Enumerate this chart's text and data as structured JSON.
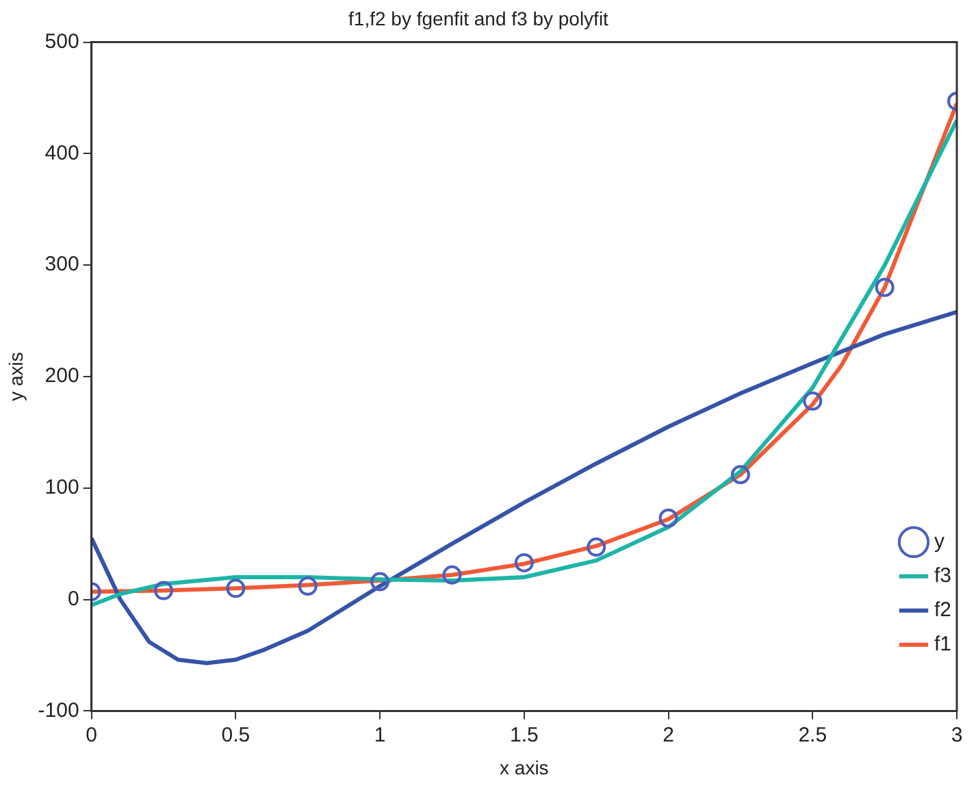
{
  "chart_data": {
    "type": "line",
    "title": "f1,f2 by fgenfit and f3 by polyfit",
    "xlabel": "x axis",
    "ylabel": "y axis",
    "xlim": [
      0,
      3
    ],
    "ylim": [
      -100,
      500
    ],
    "xticks": [
      0,
      0.5,
      1,
      1.5,
      2,
      2.5,
      3
    ],
    "yticks": [
      -100,
      0,
      100,
      200,
      300,
      400,
      500
    ],
    "grid": false,
    "legend": "bottom right",
    "line_style": "solid",
    "series": [
      {
        "name": "y",
        "type": "scatter",
        "marker": "circle",
        "color": "#4a5fc1",
        "x": [
          0,
          0.25,
          0.5,
          0.75,
          1,
          1.25,
          1.5,
          1.75,
          2,
          2.25,
          2.5,
          2.75,
          3
        ],
        "values": [
          7,
          8,
          10,
          12,
          16,
          22,
          33,
          47,
          73,
          112,
          178,
          280,
          447
        ]
      },
      {
        "name": "f3",
        "type": "line",
        "color": "#1db5a8",
        "x": [
          0,
          0.1,
          0.25,
          0.5,
          0.75,
          1,
          1.25,
          1.5,
          1.75,
          2,
          2.25,
          2.5,
          2.75,
          3
        ],
        "values": [
          -5,
          5,
          14,
          20,
          20,
          18,
          17,
          20,
          35,
          65,
          115,
          190,
          300,
          430
        ]
      },
      {
        "name": "f2",
        "type": "line",
        "color": "#3553a8",
        "x": [
          0,
          0.1,
          0.2,
          0.3,
          0.4,
          0.5,
          0.6,
          0.75,
          1,
          1.25,
          1.5,
          1.75,
          2,
          2.25,
          2.5,
          2.75,
          3
        ],
        "values": [
          55,
          0,
          -38,
          -54,
          -57,
          -54,
          -45,
          -28,
          12,
          50,
          87,
          122,
          155,
          185,
          212,
          238,
          258
        ]
      },
      {
        "name": "f1",
        "type": "line",
        "color": "#f05a36",
        "x": [
          0,
          0.25,
          0.5,
          0.75,
          1,
          1.25,
          1.5,
          1.75,
          2,
          2.25,
          2.5,
          2.6,
          2.75,
          3
        ],
        "values": [
          7,
          8,
          10,
          13,
          17,
          22,
          32,
          48,
          72,
          112,
          175,
          210,
          280,
          445
        ]
      }
    ]
  }
}
